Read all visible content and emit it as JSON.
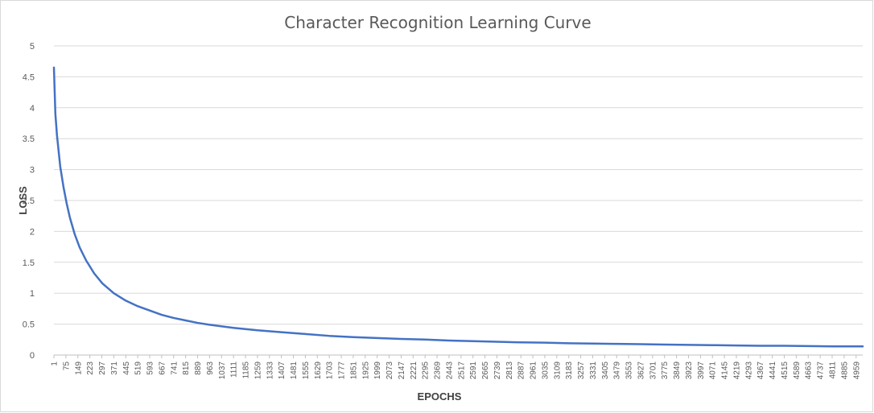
{
  "chart_data": {
    "type": "line",
    "title": "Character Recognition Learning Curve",
    "xlabel": "EPOCHS",
    "ylabel": "LOSS",
    "ylim": [
      0,
      5
    ],
    "yticks": [
      "0",
      "0.5",
      "1",
      "1.5",
      "2",
      "2.5",
      "3",
      "3.5",
      "4",
      "4.5",
      "5"
    ],
    "xlim": [
      1,
      5000
    ],
    "xtick_labels": [
      "1",
      "75",
      "149",
      "223",
      "297",
      "371",
      "445",
      "519",
      "593",
      "667",
      "741",
      "815",
      "889",
      "963",
      "1037",
      "1111",
      "1185",
      "1259",
      "1333",
      "1407",
      "1481",
      "1555",
      "1629",
      "1703",
      "1777",
      "1851",
      "1925",
      "1999",
      "2073",
      "2147",
      "2221",
      "2295",
      "2369",
      "2443",
      "2517",
      "2591",
      "2665",
      "2739",
      "2813",
      "2887",
      "2961",
      "3035",
      "3109",
      "3183",
      "3257",
      "3331",
      "3405",
      "3479",
      "3553",
      "3627",
      "3701",
      "3775",
      "3849",
      "3923",
      "3997",
      "4071",
      "4145",
      "4219",
      "4293",
      "4367",
      "4441",
      "4515",
      "4589",
      "4663",
      "4737",
      "4811",
      "4885",
      "4959"
    ],
    "grid": true,
    "series": [
      {
        "name": "Loss",
        "color": "#4472c4",
        "x": [
          1,
          10,
          20,
          40,
          60,
          80,
          100,
          130,
          160,
          200,
          250,
          300,
          371,
          445,
          519,
          593,
          667,
          741,
          815,
          889,
          963,
          1111,
          1259,
          1407,
          1555,
          1703,
          1851,
          1999,
          2147,
          2295,
          2443,
          2591,
          2739,
          2887,
          3035,
          3183,
          3331,
          3479,
          3627,
          3775,
          3923,
          4071,
          4219,
          4367,
          4515,
          4663,
          4811,
          4959,
          5000
        ],
        "values": [
          4.65,
          3.9,
          3.55,
          3.05,
          2.72,
          2.45,
          2.22,
          1.95,
          1.74,
          1.53,
          1.32,
          1.16,
          1.0,
          0.88,
          0.79,
          0.72,
          0.65,
          0.6,
          0.56,
          0.52,
          0.49,
          0.44,
          0.4,
          0.37,
          0.34,
          0.31,
          0.29,
          0.275,
          0.26,
          0.25,
          0.235,
          0.225,
          0.215,
          0.205,
          0.2,
          0.19,
          0.185,
          0.18,
          0.175,
          0.17,
          0.165,
          0.16,
          0.155,
          0.15,
          0.15,
          0.145,
          0.14,
          0.14,
          0.14
        ]
      }
    ]
  }
}
